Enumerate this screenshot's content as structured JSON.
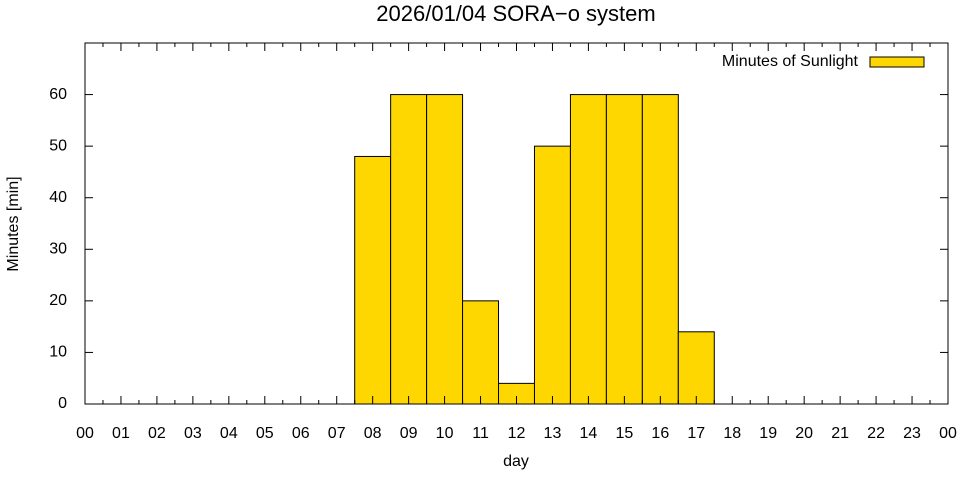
{
  "chart_data": {
    "type": "bar",
    "title": "2026/01/04 SORA−o system",
    "x_label": "day",
    "y_label": "Minutes [min]",
    "categories": [
      "00",
      "01",
      "02",
      "03",
      "04",
      "05",
      "06",
      "07",
      "08",
      "09",
      "10",
      "11",
      "12",
      "13",
      "14",
      "15",
      "16",
      "17",
      "18",
      "19",
      "20",
      "21",
      "22",
      "23",
      "00"
    ],
    "series": [
      {
        "name": "Minutes of Sunlight",
        "color": "#ffd700",
        "values": [
          0,
          0,
          0,
          0,
          0,
          0,
          0,
          0,
          48,
          60,
          60,
          20,
          4,
          50,
          60,
          60,
          60,
          14,
          0,
          0,
          0,
          0,
          0,
          0,
          null
        ]
      }
    ],
    "ylim": [
      0,
      70
    ],
    "yticks": [
      0,
      10,
      20,
      30,
      40,
      50,
      60
    ],
    "grid": false,
    "legend": "top-right"
  }
}
